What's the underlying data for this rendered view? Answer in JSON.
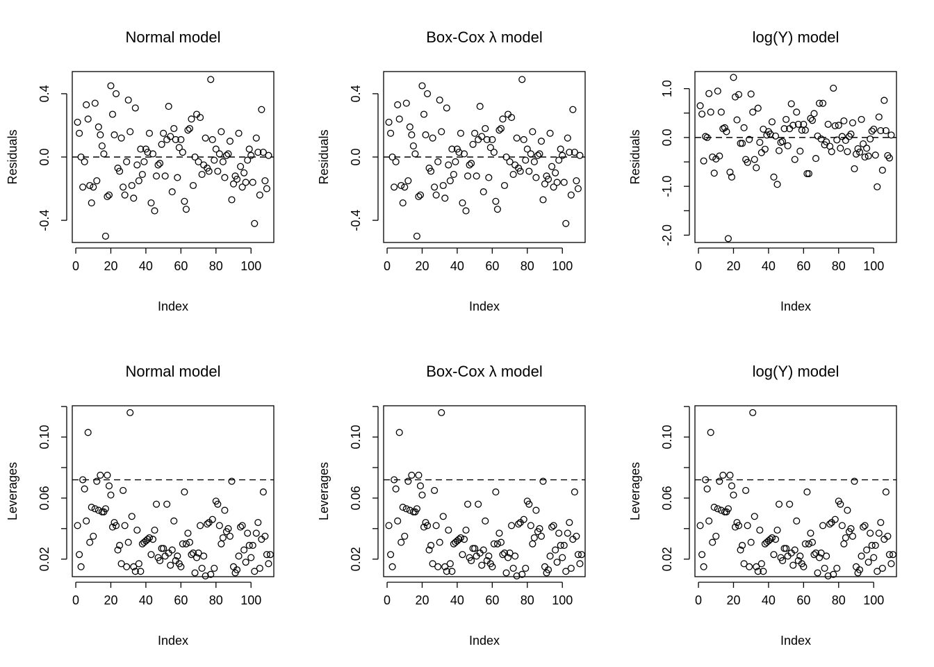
{
  "chart_data": [
    {
      "type": "scatter",
      "title": "Normal model",
      "xlabel": "Index",
      "ylabel": "Residuals",
      "xlim": [
        -2,
        113
      ],
      "ylim": [
        -0.54,
        0.54
      ],
      "xticks": [
        0,
        20,
        40,
        60,
        80,
        100
      ],
      "xtick_labels": [
        "0",
        "20",
        "40",
        "60",
        "80",
        "100"
      ],
      "yticks": [
        -0.4,
        0.0,
        0.4
      ],
      "ytick_labels": [
        "-0.4",
        "0.0",
        "0.4"
      ],
      "hline": {
        "y": 0.0,
        "style": "dashed"
      },
      "grid": false,
      "legend": "none",
      "y": [
        0.22,
        0.15,
        0.0,
        -0.19,
        -0.03,
        0.33,
        0.24,
        -0.18,
        -0.29,
        -0.19,
        0.34,
        -0.15,
        0.19,
        0.14,
        0.07,
        0.02,
        -0.5,
        -0.25,
        -0.24,
        0.45,
        0.27,
        0.14,
        0.4,
        -0.07,
        -0.09,
        0.12,
        -0.19,
        -0.24,
        -0.03,
        0.36,
        0.16,
        -0.18,
        -0.26,
        0.31,
        -0.05,
        -0.15,
        0.05,
        -0.11,
        -0.03,
        0.05,
        0.03,
        0.15,
        -0.29,
        0.02,
        -0.34,
        -0.12,
        -0.05,
        -0.04,
        0.08,
        0.15,
        -0.12,
        0.11,
        0.32,
        0.13,
        -0.22,
        0.18,
        0.11,
        -0.13,
        0.06,
        0.11,
        0.03,
        -0.28,
        -0.33,
        0.17,
        0.18,
        0.24,
        -0.18,
        0.0,
        0.27,
        -0.03,
        0.25,
        -0.11,
        -0.05,
        0.12,
        -0.07,
        -0.09,
        0.49,
        0.11,
        -0.02,
        0.05,
        -0.09,
        0.02,
        0.16,
        -0.03,
        -0.13,
        0.01,
        0.02,
        0.1,
        -0.27,
        -0.17,
        -0.12,
        -0.14,
        0.15,
        -0.06,
        -0.19,
        -0.1,
        -0.16,
        -0.02,
        0.05,
        0.01,
        -0.16,
        -0.42,
        0.12,
        0.03,
        -0.24,
        0.3,
        0.03,
        -0.15,
        -0.2,
        0.01
      ]
    },
    {
      "type": "scatter",
      "title": "Box-Cox λ model",
      "xlabel": "Index",
      "ylabel": "Residuals",
      "xlim": [
        -2,
        113
      ],
      "ylim": [
        -0.54,
        0.54
      ],
      "xticks": [
        0,
        20,
        40,
        60,
        80,
        100
      ],
      "xtick_labels": [
        "0",
        "20",
        "40",
        "60",
        "80",
        "100"
      ],
      "yticks": [
        -0.4,
        0.0,
        0.4
      ],
      "ytick_labels": [
        "-0.4",
        "0.0",
        "0.4"
      ],
      "hline": {
        "y": 0.0,
        "style": "dashed"
      },
      "grid": false,
      "legend": "none",
      "y": [
        0.22,
        0.15,
        0.0,
        -0.19,
        -0.03,
        0.33,
        0.24,
        -0.18,
        -0.29,
        -0.19,
        0.34,
        -0.15,
        0.19,
        0.14,
        0.07,
        0.02,
        -0.5,
        -0.25,
        -0.24,
        0.45,
        0.27,
        0.14,
        0.4,
        -0.07,
        -0.09,
        0.12,
        -0.19,
        -0.24,
        -0.03,
        0.36,
        0.16,
        -0.18,
        -0.26,
        0.31,
        -0.05,
        -0.15,
        0.05,
        -0.11,
        -0.03,
        0.05,
        0.03,
        0.15,
        -0.29,
        0.02,
        -0.34,
        -0.12,
        -0.05,
        -0.04,
        0.08,
        0.15,
        -0.12,
        0.11,
        0.32,
        0.13,
        -0.22,
        0.18,
        0.11,
        -0.13,
        0.06,
        0.11,
        0.03,
        -0.28,
        -0.33,
        0.17,
        0.18,
        0.24,
        -0.18,
        0.0,
        0.27,
        -0.03,
        0.25,
        -0.11,
        -0.05,
        0.12,
        -0.07,
        -0.09,
        0.49,
        0.11,
        -0.02,
        0.05,
        -0.09,
        0.02,
        0.16,
        -0.03,
        -0.13,
        0.01,
        0.02,
        0.1,
        -0.27,
        -0.17,
        -0.12,
        -0.14,
        0.15,
        -0.06,
        -0.19,
        -0.1,
        -0.16,
        -0.02,
        0.05,
        0.01,
        -0.16,
        -0.42,
        0.12,
        0.03,
        -0.24,
        0.3,
        0.03,
        -0.15,
        -0.2,
        0.01
      ]
    },
    {
      "type": "scatter",
      "title": "log(Y) model",
      "xlabel": "Index",
      "ylabel": "Residuals",
      "xlim": [
        -2,
        113
      ],
      "ylim": [
        -2.15,
        1.35
      ],
      "xticks": [
        0,
        20,
        40,
        60,
        80,
        100
      ],
      "xtick_labels": [
        "0",
        "20",
        "40",
        "60",
        "80",
        "100"
      ],
      "yticks": [
        -2.0,
        -1.5,
        -1.0,
        -0.5,
        0.0,
        0.5,
        1.0
      ],
      "ytick_labels": [
        "-2.0",
        "",
        "-1.0",
        "",
        "0.0",
        "",
        "1.0"
      ],
      "hline": {
        "y": 0.0,
        "style": "dashed"
      },
      "grid": false,
      "legend": "none",
      "y": [
        0.65,
        0.48,
        -0.48,
        0.02,
        0.0,
        0.9,
        0.52,
        -0.4,
        -0.73,
        -0.44,
        0.95,
        -0.38,
        0.52,
        0.18,
        0.2,
        0.12,
        -2.07,
        -0.71,
        -0.81,
        1.23,
        0.83,
        0.36,
        0.88,
        -0.12,
        -0.12,
        0.2,
        -0.45,
        -0.51,
        -0.04,
        0.89,
        0.52,
        -0.45,
        -0.62,
        0.6,
        -0.1,
        -0.31,
        0.17,
        -0.24,
        0.05,
        0.12,
        0.07,
        0.32,
        -0.81,
        0.03,
        -0.96,
        -0.27,
        -0.1,
        -0.08,
        0.18,
        0.37,
        -0.17,
        0.18,
        0.69,
        0.25,
        -0.45,
        0.52,
        0.27,
        -0.28,
        0.15,
        0.27,
        0.15,
        -0.74,
        -0.74,
        0.39,
        0.35,
        0.49,
        -0.43,
        0.03,
        0.7,
        -0.03,
        0.7,
        -0.15,
        -0.09,
        0.27,
        -0.18,
        -0.29,
        1.01,
        0.24,
        -0.05,
        0.25,
        -0.22,
        0.02,
        0.34,
        -0.06,
        -0.29,
        0.02,
        0.07,
        0.3,
        -0.64,
        -0.34,
        -0.23,
        -0.3,
        0.37,
        -0.13,
        -0.4,
        -0.22,
        -0.38,
        -0.03,
        0.13,
        0.17,
        -0.36,
        -1.01,
        0.42,
        0.14,
        -0.67,
        0.76,
        0.14,
        -0.37,
        -0.42,
        0.05
      ]
    },
    {
      "type": "scatter",
      "title": "Normal model",
      "xlabel": "Index",
      "ylabel": "Leverages",
      "xlim": [
        -2,
        113
      ],
      "ylim": [
        0.0085,
        0.1205
      ],
      "xticks": [
        0,
        20,
        40,
        60,
        80,
        100
      ],
      "xtick_labels": [
        "0",
        "20",
        "40",
        "60",
        "80",
        "100"
      ],
      "yticks": [
        0.02,
        0.04,
        0.06,
        0.08,
        0.1,
        0.12
      ],
      "ytick_labels": [
        "0.02",
        "",
        "0.06",
        "",
        "0.10",
        ""
      ],
      "hline": {
        "y": 0.072,
        "style": "dashed"
      },
      "grid": false,
      "legend": "none",
      "y": [
        0.042,
        0.023,
        0.015,
        0.072,
        0.066,
        0.045,
        0.103,
        0.031,
        0.054,
        0.035,
        0.053,
        0.071,
        0.052,
        0.075,
        0.051,
        0.051,
        0.053,
        0.075,
        0.068,
        0.062,
        0.041,
        0.044,
        0.042,
        0.026,
        0.029,
        0.017,
        0.065,
        0.042,
        0.015,
        0.031,
        0.116,
        0.048,
        0.015,
        0.012,
        0.039,
        0.017,
        0.012,
        0.03,
        0.031,
        0.032,
        0.033,
        0.034,
        0.023,
        0.033,
        0.039,
        0.056,
        0.021,
        0.019,
        0.027,
        0.027,
        0.022,
        0.056,
        0.024,
        0.016,
        0.026,
        0.045,
        0.019,
        0.022,
        0.017,
        0.015,
        0.03,
        0.064,
        0.03,
        0.037,
        0.031,
        0.023,
        0.024,
        0.011,
        0.021,
        0.024,
        0.042,
        0.014,
        0.022,
        0.009,
        0.043,
        0.044,
        0.01,
        0.046,
        0.014,
        0.058,
        0.056,
        0.042,
        0.03,
        0.034,
        0.052,
        0.038,
        0.04,
        0.035,
        0.071,
        0.015,
        0.011,
        0.013,
        0.022,
        0.041,
        0.042,
        0.026,
        0.018,
        0.037,
        0.029,
        0.021,
        0.029,
        0.012,
        0.037,
        0.044,
        0.014,
        0.033,
        0.064,
        0.035,
        0.023,
        0.017,
        0.023
      ]
    },
    {
      "type": "scatter",
      "title": "Box-Cox λ model",
      "xlabel": "Index",
      "ylabel": "Leverages",
      "xlim": [
        -2,
        113
      ],
      "ylim": [
        0.0085,
        0.1205
      ],
      "xticks": [
        0,
        20,
        40,
        60,
        80,
        100
      ],
      "xtick_labels": [
        "0",
        "20",
        "40",
        "60",
        "80",
        "100"
      ],
      "yticks": [
        0.02,
        0.04,
        0.06,
        0.08,
        0.1,
        0.12
      ],
      "ytick_labels": [
        "0.02",
        "",
        "0.06",
        "",
        "0.10",
        ""
      ],
      "hline": {
        "y": 0.072,
        "style": "dashed"
      },
      "grid": false,
      "legend": "none",
      "y": [
        0.042,
        0.023,
        0.015,
        0.072,
        0.066,
        0.045,
        0.103,
        0.031,
        0.054,
        0.035,
        0.053,
        0.071,
        0.052,
        0.075,
        0.051,
        0.051,
        0.053,
        0.075,
        0.068,
        0.062,
        0.041,
        0.044,
        0.042,
        0.026,
        0.029,
        0.017,
        0.065,
        0.042,
        0.015,
        0.031,
        0.116,
        0.048,
        0.015,
        0.012,
        0.039,
        0.017,
        0.012,
        0.03,
        0.031,
        0.032,
        0.033,
        0.034,
        0.023,
        0.033,
        0.039,
        0.056,
        0.021,
        0.019,
        0.027,
        0.027,
        0.022,
        0.056,
        0.024,
        0.016,
        0.026,
        0.045,
        0.019,
        0.022,
        0.017,
        0.015,
        0.03,
        0.064,
        0.03,
        0.037,
        0.031,
        0.023,
        0.024,
        0.011,
        0.021,
        0.024,
        0.042,
        0.014,
        0.022,
        0.009,
        0.043,
        0.044,
        0.01,
        0.046,
        0.014,
        0.058,
        0.056,
        0.042,
        0.03,
        0.034,
        0.052,
        0.038,
        0.04,
        0.035,
        0.071,
        0.015,
        0.011,
        0.013,
        0.022,
        0.041,
        0.042,
        0.026,
        0.018,
        0.037,
        0.029,
        0.021,
        0.029,
        0.012,
        0.037,
        0.044,
        0.014,
        0.033,
        0.064,
        0.035,
        0.023,
        0.017,
        0.023
      ]
    },
    {
      "type": "scatter",
      "title": "log(Y) model",
      "xlabel": "Index",
      "ylabel": "Leverages",
      "xlim": [
        -2,
        113
      ],
      "ylim": [
        0.0085,
        0.1205
      ],
      "xticks": [
        0,
        20,
        40,
        60,
        80,
        100
      ],
      "xtick_labels": [
        "0",
        "20",
        "40",
        "60",
        "80",
        "100"
      ],
      "yticks": [
        0.02,
        0.04,
        0.06,
        0.08,
        0.1,
        0.12
      ],
      "ytick_labels": [
        "0.02",
        "",
        "0.06",
        "",
        "0.10",
        ""
      ],
      "hline": {
        "y": 0.072,
        "style": "dashed"
      },
      "grid": false,
      "legend": "none",
      "y": [
        0.042,
        0.023,
        0.015,
        0.072,
        0.066,
        0.045,
        0.103,
        0.031,
        0.054,
        0.035,
        0.053,
        0.071,
        0.052,
        0.075,
        0.051,
        0.051,
        0.053,
        0.075,
        0.068,
        0.062,
        0.041,
        0.044,
        0.042,
        0.026,
        0.029,
        0.017,
        0.065,
        0.042,
        0.015,
        0.031,
        0.116,
        0.048,
        0.015,
        0.012,
        0.039,
        0.017,
        0.012,
        0.03,
        0.031,
        0.032,
        0.033,
        0.034,
        0.023,
        0.033,
        0.039,
        0.056,
        0.021,
        0.019,
        0.027,
        0.027,
        0.022,
        0.056,
        0.024,
        0.016,
        0.026,
        0.045,
        0.019,
        0.022,
        0.017,
        0.015,
        0.03,
        0.064,
        0.03,
        0.037,
        0.031,
        0.023,
        0.024,
        0.011,
        0.021,
        0.024,
        0.042,
        0.014,
        0.022,
        0.009,
        0.043,
        0.044,
        0.01,
        0.046,
        0.014,
        0.058,
        0.056,
        0.042,
        0.03,
        0.034,
        0.052,
        0.038,
        0.04,
        0.035,
        0.071,
        0.015,
        0.011,
        0.013,
        0.022,
        0.041,
        0.042,
        0.026,
        0.018,
        0.037,
        0.029,
        0.021,
        0.029,
        0.012,
        0.037,
        0.044,
        0.014,
        0.033,
        0.064,
        0.035,
        0.023,
        0.017,
        0.023
      ]
    }
  ]
}
